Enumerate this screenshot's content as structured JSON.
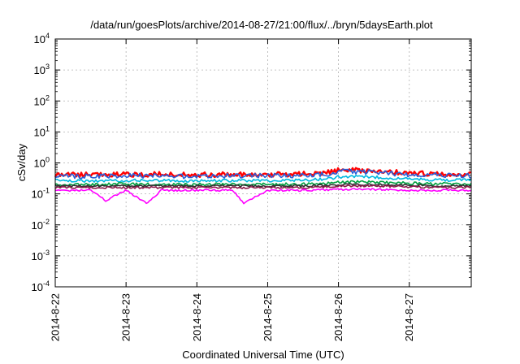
{
  "chart_data": {
    "type": "line",
    "title": "/data/run/goesPlots/archive/2014-08-27/21:00/flux/../bryn/5daysEarth.plot",
    "xlabel": "Coordinated Universal Time (UTC)",
    "ylabel": "cSv/day",
    "y_scale": "log",
    "ylim": [
      0.0001,
      10000
    ],
    "xlim": [
      "2014-08-22",
      "2014-08-27T21:00"
    ],
    "x_tick_labels": [
      "2014-8-22",
      "2014-8-23",
      "2014-8-24",
      "2014-8-25",
      "2014-8-26",
      "2014-8-27"
    ],
    "y_tick_labels": [
      {
        "base": "10",
        "exp": "-4"
      },
      {
        "base": "10",
        "exp": "-3"
      },
      {
        "base": "10",
        "exp": "-2"
      },
      {
        "base": "10",
        "exp": "-1"
      },
      {
        "base": "10",
        "exp": "0"
      },
      {
        "base": "10",
        "exp": "1"
      },
      {
        "base": "10",
        "exp": "2"
      },
      {
        "base": "10",
        "exp": "3"
      },
      {
        "base": "10",
        "exp": "4"
      }
    ],
    "grid": true,
    "legend": "none",
    "series": [
      {
        "color": "#ff0000",
        "x": [
          "2014-08-22",
          "2014-08-22T12:00",
          "2014-08-23",
          "2014-08-23T12:00",
          "2014-08-24",
          "2014-08-24T12:00",
          "2014-08-25",
          "2014-08-25T12:00",
          "2014-08-25T21:00",
          "2014-08-26",
          "2014-08-26T12:00",
          "2014-08-27",
          "2014-08-27T12:00",
          "2014-08-27T21:00"
        ],
        "values": [
          0.42,
          0.41,
          0.42,
          0.43,
          0.41,
          0.43,
          0.42,
          0.44,
          0.5,
          0.58,
          0.57,
          0.46,
          0.44,
          0.43
        ]
      },
      {
        "color": "#2a5fd8",
        "x": [
          "2014-08-22",
          "2014-08-22T12:00",
          "2014-08-23",
          "2014-08-23T12:00",
          "2014-08-24",
          "2014-08-24T12:00",
          "2014-08-25",
          "2014-08-25T12:00",
          "2014-08-25T21:00",
          "2014-08-26",
          "2014-08-26T12:00",
          "2014-08-27",
          "2014-08-27T12:00",
          "2014-08-27T21:00"
        ],
        "values": [
          0.38,
          0.37,
          0.39,
          0.38,
          0.37,
          0.39,
          0.38,
          0.4,
          0.45,
          0.52,
          0.5,
          0.42,
          0.4,
          0.39
        ]
      },
      {
        "color": "#00b8e0",
        "x": [
          "2014-08-22",
          "2014-08-22T12:00",
          "2014-08-23",
          "2014-08-23T12:00",
          "2014-08-24",
          "2014-08-24T12:00",
          "2014-08-25",
          "2014-08-25T12:00",
          "2014-08-25T21:00",
          "2014-08-26",
          "2014-08-26T12:00",
          "2014-08-27",
          "2014-08-27T12:00",
          "2014-08-27T21:00"
        ],
        "values": [
          0.27,
          0.26,
          0.27,
          0.27,
          0.26,
          0.27,
          0.27,
          0.28,
          0.31,
          0.36,
          0.35,
          0.3,
          0.28,
          0.28
        ]
      },
      {
        "color": "#00a040",
        "x": [
          "2014-08-22",
          "2014-08-22T12:00",
          "2014-08-23",
          "2014-08-23T12:00",
          "2014-08-24",
          "2014-08-24T12:00",
          "2014-08-25",
          "2014-08-25T12:00",
          "2014-08-25T21:00",
          "2014-08-26",
          "2014-08-26T12:00",
          "2014-08-27",
          "2014-08-27T12:00",
          "2014-08-27T21:00"
        ],
        "values": [
          0.2,
          0.2,
          0.21,
          0.2,
          0.2,
          0.21,
          0.2,
          0.21,
          0.22,
          0.24,
          0.24,
          0.22,
          0.21,
          0.21
        ]
      },
      {
        "color": "#303030",
        "x": [
          "2014-08-22",
          "2014-08-22T12:00",
          "2014-08-23",
          "2014-08-23T12:00",
          "2014-08-24",
          "2014-08-24T12:00",
          "2014-08-25",
          "2014-08-25T12:00",
          "2014-08-25T21:00",
          "2014-08-26",
          "2014-08-26T12:00",
          "2014-08-27",
          "2014-08-27T12:00",
          "2014-08-27T21:00"
        ],
        "values": [
          0.18,
          0.18,
          0.18,
          0.18,
          0.18,
          0.18,
          0.18,
          0.18,
          0.19,
          0.2,
          0.2,
          0.19,
          0.18,
          0.18
        ]
      },
      {
        "color": "#8b1a4a",
        "x": [
          "2014-08-22",
          "2014-08-22T12:00",
          "2014-08-23",
          "2014-08-23T12:00",
          "2014-08-24",
          "2014-08-24T12:00",
          "2014-08-25",
          "2014-08-25T12:00",
          "2014-08-25T21:00",
          "2014-08-26",
          "2014-08-26T12:00",
          "2014-08-27",
          "2014-08-27T12:00",
          "2014-08-27T21:00"
        ],
        "values": [
          0.16,
          0.16,
          0.16,
          0.16,
          0.16,
          0.16,
          0.16,
          0.16,
          0.17,
          0.18,
          0.18,
          0.17,
          0.16,
          0.16
        ]
      },
      {
        "color": "#ff00ff",
        "x": [
          "2014-08-22",
          "2014-08-22T12:00",
          "2014-08-22T17:00",
          "2014-08-23",
          "2014-08-23T07:00",
          "2014-08-23T12:00",
          "2014-08-24",
          "2014-08-24T12:00",
          "2014-08-24T16:00",
          "2014-08-25",
          "2014-08-25T12:00",
          "2014-08-26",
          "2014-08-26T12:00",
          "2014-08-27",
          "2014-08-27T12:00",
          "2014-08-27T21:00"
        ],
        "values": [
          0.13,
          0.13,
          0.06,
          0.13,
          0.05,
          0.13,
          0.13,
          0.13,
          0.05,
          0.13,
          0.13,
          0.14,
          0.14,
          0.13,
          0.13,
          0.13
        ]
      }
    ]
  }
}
